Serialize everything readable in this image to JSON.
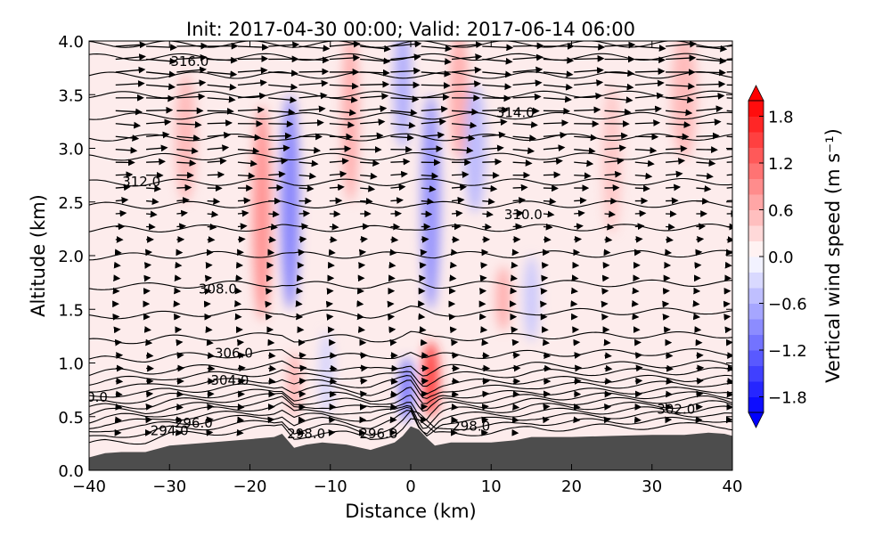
{
  "chart_data": {
    "type": "contour-cross-section",
    "title": "Init: 2017-04-30 00:00; Valid: 2017-06-14 06:00",
    "xlabel": "Distance (km)",
    "ylabel": "Altitude (km)",
    "xlim": [
      -40,
      40
    ],
    "ylim": [
      0,
      4
    ],
    "xticks": [
      "−40",
      "−30",
      "−20",
      "−10",
      "0",
      "10",
      "20",
      "30",
      "40"
    ],
    "xtick_values": [
      -40,
      -30,
      -20,
      -10,
      0,
      10,
      20,
      30,
      40
    ],
    "yticks": [
      "0.0",
      "0.5",
      "1.0",
      "1.5",
      "2.0",
      "2.5",
      "3.0",
      "3.5",
      "4.0"
    ],
    "ytick_values": [
      0,
      0.5,
      1,
      1.5,
      2,
      2.5,
      3,
      3.5,
      4
    ],
    "colorbar": {
      "label": "Vertical wind speed (m s⁻¹)",
      "range": [
        -2,
        2
      ],
      "step": 0.2,
      "extend": "both",
      "ticks": [
        "1.8",
        "1.2",
        "0.6",
        "0.0",
        "−0.6",
        "−1.2",
        "−1.8"
      ],
      "tick_values": [
        1.8,
        1.2,
        0.6,
        0.0,
        -0.6,
        -1.2,
        -1.8
      ]
    },
    "terrain": {
      "color": "#4d4d4d",
      "x": [
        -40,
        -38,
        -36,
        -33,
        -30,
        -25,
        -20,
        -17,
        -16,
        -14.5,
        -13,
        -11,
        -8,
        -5,
        -2,
        -1,
        0,
        1,
        2,
        3,
        5,
        8,
        10,
        13,
        15,
        18,
        20,
        25,
        30,
        34,
        37,
        39,
        40
      ],
      "z": [
        0.12,
        0.16,
        0.17,
        0.17,
        0.23,
        0.26,
        0.29,
        0.31,
        0.34,
        0.21,
        0.24,
        0.26,
        0.24,
        0.19,
        0.26,
        0.32,
        0.41,
        0.38,
        0.3,
        0.23,
        0.26,
        0.26,
        0.26,
        0.28,
        0.31,
        0.31,
        0.31,
        0.32,
        0.33,
        0.33,
        0.35,
        0.34,
        0.32
      ]
    },
    "isentropes_base_km": [
      0.3,
      0.36,
      0.42,
      0.47,
      0.52,
      0.57,
      0.62,
      0.67,
      0.73,
      0.79,
      0.86,
      0.93,
      1.05,
      1.22,
      1.45,
      1.72,
      2.0,
      2.25,
      2.47,
      2.68,
      2.92,
      3.1,
      3.3,
      3.5,
      3.68,
      3.85,
      3.97
    ],
    "contour_labels": [
      {
        "text": "316.0",
        "x": -27.5,
        "z": 3.81
      },
      {
        "text": "314.0",
        "x": 13,
        "z": 3.33
      },
      {
        "text": "312.0",
        "x": -33.5,
        "z": 2.69
      },
      {
        "text": "310.0",
        "x": 14,
        "z": 2.38
      },
      {
        "text": "308.0",
        "x": -24,
        "z": 1.69
      },
      {
        "text": "306.0",
        "x": -22,
        "z": 1.09
      },
      {
        "text": "304.0",
        "x": -22.5,
        "z": 0.84
      },
      {
        "text": "0.0",
        "x": -39,
        "z": 0.68
      },
      {
        "text": "302.0",
        "x": 33,
        "z": 0.57
      },
      {
        "text": "296.0",
        "x": -27,
        "z": 0.44
      },
      {
        "text": "294.0",
        "x": -30,
        "z": 0.37
      },
      {
        "text": "298.0",
        "x": -13,
        "z": 0.34
      },
      {
        "text": "296.0",
        "x": -4,
        "z": 0.34
      },
      {
        "text": "298.0",
        "x": 7.5,
        "z": 0.41
      }
    ],
    "w_features": [
      {
        "x": 2.5,
        "z": 0.85,
        "w": 1.4,
        "sx": 0.8,
        "sz": 0.35
      },
      {
        "x": -0.5,
        "z": 0.75,
        "w": -1.0,
        "sx": 0.7,
        "sz": 0.3
      },
      {
        "x": -18.5,
        "z": 2.4,
        "w": 0.8,
        "sx": 0.9,
        "sz": 1.0
      },
      {
        "x": -15,
        "z": 2.5,
        "w": -0.9,
        "sx": 0.9,
        "sz": 1.0
      },
      {
        "x": -7.5,
        "z": 3.3,
        "w": 0.6,
        "sx": 0.8,
        "sz": 0.8
      },
      {
        "x": -1,
        "z": 3.6,
        "w": -0.6,
        "sx": 0.8,
        "sz": 0.6
      },
      {
        "x": 2.5,
        "z": 2.5,
        "w": -0.8,
        "sx": 0.9,
        "sz": 1.0
      },
      {
        "x": 6,
        "z": 3.5,
        "w": 0.6,
        "sx": 0.9,
        "sz": 0.6
      },
      {
        "x": 8,
        "z": 3.0,
        "w": -0.5,
        "sx": 1.0,
        "sz": 0.6
      },
      {
        "x": 11.5,
        "z": 1.6,
        "w": 0.6,
        "sx": 0.7,
        "sz": 0.3
      },
      {
        "x": 15,
        "z": 1.6,
        "w": -0.4,
        "sx": 0.7,
        "sz": 0.4
      },
      {
        "x": 34,
        "z": 3.5,
        "w": 0.5,
        "sx": 1.2,
        "sz": 0.6
      },
      {
        "x": -28,
        "z": 3.1,
        "w": 0.5,
        "sx": 1.0,
        "sz": 0.6
      },
      {
        "x": -14.5,
        "z": 0.8,
        "w": 0.6,
        "sx": 0.6,
        "sz": 0.3
      },
      {
        "x": -10.5,
        "z": 0.9,
        "w": -0.3,
        "sx": 0.7,
        "sz": 0.4
      },
      {
        "x": 25,
        "z": 2.9,
        "w": 0.4,
        "sx": 0.9,
        "sz": 0.7
      }
    ],
    "wind_u_profile": {
      "z": [
        0.3,
        1.0,
        1.5,
        2.0,
        2.5,
        3.0,
        3.5,
        4.0
      ],
      "u": [
        2,
        3,
        1,
        2,
        5,
        9,
        12,
        13
      ]
    }
  }
}
